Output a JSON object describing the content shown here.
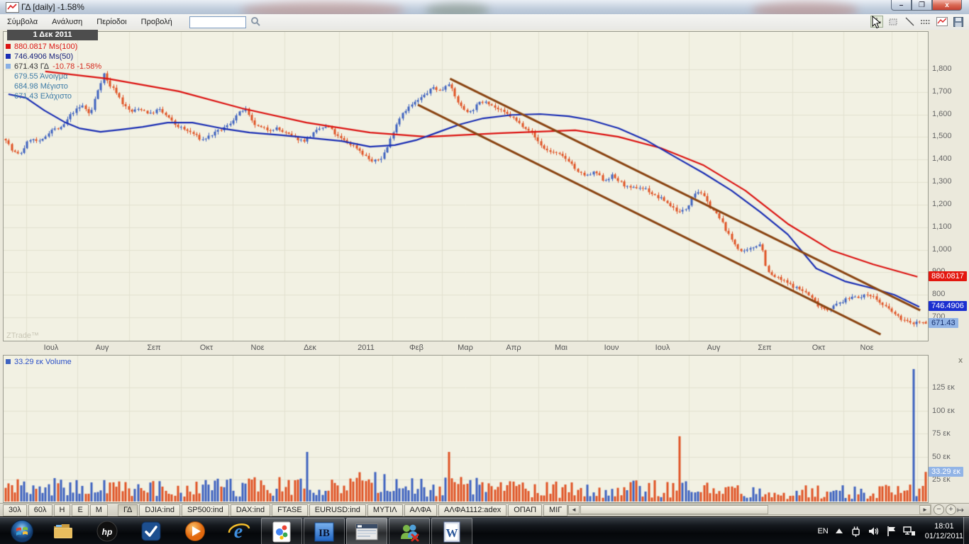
{
  "window": {
    "title": "ΓΔ [daily] -1.58%",
    "min": "–",
    "max": "❐",
    "close": "x"
  },
  "menu": {
    "items": [
      "Σύμβολα",
      "Ανάλυση",
      "Περίοδοι",
      "Προβολή"
    ],
    "search_value": "",
    "tool_icons": [
      "crosshair-tool",
      "region-tool",
      "trendline-tool",
      "measure-tool",
      "chart-type-tool",
      "save-tool"
    ]
  },
  "chart": {
    "tooltip_date": "1 Δεκ 2011",
    "legend": {
      "ma100": "880.0817 Ms(100)",
      "ma50": "746.4906 Ms(50)",
      "symbol": "671.43 ΓΔ",
      "change": "-10.78 -1.58%",
      "open": "679.55 Άνοιγμα",
      "high": "684.98 Μέγιστο",
      "low": "671.43 Ελάχιστο"
    },
    "watermark": "ZTrade™",
    "volume_legend": "33.29 εκ Volume",
    "price_ticks": [
      [
        "1,800",
        1800
      ],
      [
        "1,700",
        1700
      ],
      [
        "1,600",
        1600
      ],
      [
        "1,500",
        1500
      ],
      [
        "1,400",
        1400
      ],
      [
        "1,300",
        1300
      ],
      [
        "1,200",
        1200
      ],
      [
        "1,100",
        1100
      ],
      [
        "1,000",
        1000
      ],
      [
        "900",
        900
      ],
      [
        "800",
        800
      ],
      [
        "700",
        700
      ]
    ],
    "volume_ticks": [
      [
        "125 εκ",
        125
      ],
      [
        "100 εκ",
        100
      ],
      [
        "75 εκ",
        75
      ],
      [
        "50 εκ",
        50
      ],
      [
        "25 εκ",
        25
      ]
    ],
    "price_tags": [
      {
        "text": "880.0817",
        "price": 880.0817,
        "bg": "#e3170f",
        "fg": "#ffffff"
      },
      {
        "text": "746.4906",
        "price": 746.4906,
        "bg": "#1b2fd0",
        "fg": "#ffffff"
      },
      {
        "text": "671.43",
        "price": 671.43,
        "bg": "#92b4e6",
        "fg": "#17306e"
      }
    ],
    "volume_tag": {
      "text": "33.29 εκ",
      "value": 33.29,
      "bg": "#92b4e6",
      "fg": "#ffffff"
    },
    "x_labels": [
      [
        "Ιουλ",
        72
      ],
      [
        "Αυγ",
        144
      ],
      [
        "Σεπ",
        217
      ],
      [
        "Οκτ",
        291
      ],
      [
        "Νοε",
        363
      ],
      [
        "Δεκ",
        437
      ],
      [
        "2011",
        516
      ],
      [
        "Φεβ",
        587
      ],
      [
        "Μαρ",
        656
      ],
      [
        "Απρ",
        724
      ],
      [
        "Μαι",
        791
      ],
      [
        "Ιουν",
        862
      ],
      [
        "Ιουλ",
        934
      ],
      [
        "Αυγ",
        1006
      ],
      [
        "Σεπ",
        1078
      ],
      [
        "Οκτ",
        1154
      ],
      [
        "Νοε",
        1222
      ]
    ]
  },
  "chart_data": {
    "type": "candlestick",
    "title": "ΓΔ daily with Ms(50), Ms(100) moving averages, down-trend channel and volume",
    "y_axis_range": [
      640,
      1850
    ],
    "x_span": "Ιουλ 2010 – 1 Δεκ 2011",
    "last_bar": {
      "date": "1 Δεκ 2011",
      "open": 679.55,
      "high": 684.98,
      "low": 671.43,
      "close": 671.43,
      "change": -10.78,
      "change_pct": -1.58,
      "volume_millions": 33.29
    },
    "ma100_last": 880.0817,
    "ma50_last": 746.4906,
    "candle_count": 300,
    "seed": 7,
    "close_anchors": [
      [
        0,
        1492
      ],
      [
        0.007,
        1438
      ],
      [
        0.015,
        1420
      ],
      [
        0.026,
        1492
      ],
      [
        0.038,
        1476
      ],
      [
        0.049,
        1533
      ],
      [
        0.061,
        1539
      ],
      [
        0.072,
        1608
      ],
      [
        0.084,
        1640
      ],
      [
        0.092,
        1596
      ],
      [
        0.099,
        1696
      ],
      [
        0.107,
        1781
      ],
      [
        0.112,
        1734
      ],
      [
        0.12,
        1703
      ],
      [
        0.128,
        1643
      ],
      [
        0.136,
        1611
      ],
      [
        0.146,
        1627
      ],
      [
        0.157,
        1602
      ],
      [
        0.166,
        1624
      ],
      [
        0.175,
        1592
      ],
      [
        0.184,
        1555
      ],
      [
        0.194,
        1533
      ],
      [
        0.203,
        1517
      ],
      [
        0.213,
        1486
      ],
      [
        0.223,
        1508
      ],
      [
        0.233,
        1530
      ],
      [
        0.242,
        1552
      ],
      [
        0.251,
        1596
      ],
      [
        0.26,
        1627
      ],
      [
        0.267,
        1570
      ],
      [
        0.274,
        1545
      ],
      [
        0.284,
        1533
      ],
      [
        0.294,
        1539
      ],
      [
        0.304,
        1517
      ],
      [
        0.314,
        1498
      ],
      [
        0.323,
        1482
      ],
      [
        0.332,
        1508
      ],
      [
        0.342,
        1539
      ],
      [
        0.351,
        1545
      ],
      [
        0.361,
        1501
      ],
      [
        0.371,
        1476
      ],
      [
        0.381,
        1454
      ],
      [
        0.39,
        1419
      ],
      [
        0.399,
        1388
      ],
      [
        0.408,
        1407
      ],
      [
        0.415,
        1457
      ],
      [
        0.423,
        1545
      ],
      [
        0.431,
        1608
      ],
      [
        0.44,
        1639
      ],
      [
        0.449,
        1665
      ],
      [
        0.458,
        1696
      ],
      [
        0.465,
        1721
      ],
      [
        0.473,
        1702
      ],
      [
        0.481,
        1746
      ],
      [
        0.488,
        1681
      ],
      [
        0.496,
        1627
      ],
      [
        0.505,
        1611
      ],
      [
        0.514,
        1649
      ],
      [
        0.522,
        1662
      ],
      [
        0.531,
        1633
      ],
      [
        0.54,
        1611
      ],
      [
        0.549,
        1592
      ],
      [
        0.559,
        1558
      ],
      [
        0.568,
        1536
      ],
      [
        0.577,
        1489
      ],
      [
        0.586,
        1445
      ],
      [
        0.595,
        1432
      ],
      [
        0.604,
        1416
      ],
      [
        0.613,
        1394
      ],
      [
        0.622,
        1341
      ],
      [
        0.632,
        1328
      ],
      [
        0.641,
        1344
      ],
      [
        0.65,
        1306
      ],
      [
        0.659,
        1328
      ],
      [
        0.669,
        1297
      ],
      [
        0.678,
        1269
      ],
      [
        0.687,
        1278
      ],
      [
        0.696,
        1269
      ],
      [
        0.706,
        1237
      ],
      [
        0.715,
        1222
      ],
      [
        0.724,
        1190
      ],
      [
        0.733,
        1165
      ],
      [
        0.741,
        1187
      ],
      [
        0.747,
        1250
      ],
      [
        0.755,
        1260
      ],
      [
        0.763,
        1206
      ],
      [
        0.77,
        1171
      ],
      [
        0.778,
        1127
      ],
      [
        0.786,
        1064
      ],
      [
        0.794,
        1017
      ],
      [
        0.801,
        986
      ],
      [
        0.809,
        1001
      ],
      [
        0.817,
        1023
      ],
      [
        0.821,
        1030
      ],
      [
        0.826,
        935
      ],
      [
        0.83,
        891
      ],
      [
        0.838,
        876
      ],
      [
        0.846,
        860
      ],
      [
        0.853,
        844
      ],
      [
        0.861,
        828
      ],
      [
        0.869,
        813
      ],
      [
        0.877,
        781
      ],
      [
        0.884,
        750
      ],
      [
        0.892,
        734
      ],
      [
        0.9,
        750
      ],
      [
        0.907,
        766
      ],
      [
        0.915,
        781
      ],
      [
        0.923,
        797
      ],
      [
        0.93,
        787
      ],
      [
        0.938,
        806
      ],
      [
        0.946,
        781
      ],
      [
        0.954,
        750
      ],
      [
        0.961,
        734
      ],
      [
        0.969,
        703
      ],
      [
        0.977,
        687
      ],
      [
        0.984,
        671
      ],
      [
        0.991,
        681
      ],
      [
        1,
        671.43
      ]
    ],
    "ma100_anchors": [
      [
        0.043,
        1791
      ],
      [
        0.111,
        1759
      ],
      [
        0.188,
        1703
      ],
      [
        0.257,
        1627
      ],
      [
        0.327,
        1564
      ],
      [
        0.396,
        1520
      ],
      [
        0.458,
        1501
      ],
      [
        0.535,
        1517
      ],
      [
        0.619,
        1530
      ],
      [
        0.666,
        1501
      ],
      [
        0.712,
        1451
      ],
      [
        0.758,
        1376
      ],
      [
        0.804,
        1262
      ],
      [
        0.85,
        1115
      ],
      [
        0.897,
        998
      ],
      [
        0.943,
        935
      ],
      [
        0.991,
        880.08
      ]
    ],
    "ma50_anchors": [
      [
        0.003,
        1690
      ],
      [
        0.022,
        1674
      ],
      [
        0.042,
        1618
      ],
      [
        0.065,
        1564
      ],
      [
        0.08,
        1539
      ],
      [
        0.103,
        1523
      ],
      [
        0.126,
        1533
      ],
      [
        0.149,
        1545
      ],
      [
        0.176,
        1564
      ],
      [
        0.203,
        1564
      ],
      [
        0.234,
        1539
      ],
      [
        0.265,
        1520
      ],
      [
        0.3,
        1508
      ],
      [
        0.334,
        1495
      ],
      [
        0.365,
        1482
      ],
      [
        0.396,
        1457
      ],
      [
        0.423,
        1464
      ],
      [
        0.446,
        1486
      ],
      [
        0.469,
        1520
      ],
      [
        0.492,
        1554
      ],
      [
        0.519,
        1583
      ],
      [
        0.55,
        1598
      ],
      [
        0.581,
        1602
      ],
      [
        0.612,
        1592
      ],
      [
        0.635,
        1576
      ],
      [
        0.666,
        1539
      ],
      [
        0.696,
        1486
      ],
      [
        0.727,
        1413
      ],
      [
        0.758,
        1341
      ],
      [
        0.789,
        1262
      ],
      [
        0.82,
        1168
      ],
      [
        0.85,
        1068
      ],
      [
        0.881,
        917
      ],
      [
        0.912,
        860
      ],
      [
        0.943,
        828
      ],
      [
        0.966,
        800
      ],
      [
        0.993,
        746.49
      ]
    ],
    "trendlines": [
      {
        "x1": 0.483,
        "p1": 1759,
        "x2": 0.994,
        "p2": 731
      },
      {
        "x1": 0.448,
        "p1": 1643,
        "x2": 0.951,
        "p2": 624
      }
    ],
    "volume_profile_millions": [
      [
        0,
        18
      ],
      [
        0.1,
        15
      ],
      [
        0.2,
        14
      ],
      [
        0.3,
        18
      ],
      [
        0.4,
        20
      ],
      [
        0.46,
        16
      ],
      [
        0.5,
        17
      ],
      [
        0.55,
        15
      ],
      [
        0.6,
        14
      ],
      [
        0.65,
        13
      ],
      [
        0.7,
        15
      ],
      [
        0.75,
        14
      ],
      [
        0.8,
        12
      ],
      [
        0.85,
        11
      ],
      [
        0.9,
        12
      ],
      [
        0.95,
        11
      ],
      [
        1,
        14
      ]
    ],
    "volume_spikes": [
      [
        0.328,
        55,
        "up"
      ],
      [
        0.481,
        55,
        "dn"
      ],
      [
        0.731,
        72,
        "dn"
      ],
      [
        0.988,
        145,
        "up"
      ]
    ],
    "colors": {
      "up": "#3f63c0",
      "down": "#e05426",
      "ma100": "#dc1412",
      "ma50": "#1b2fb4",
      "trend": "#8a4412",
      "grid": "#e3e1d1",
      "plot_bg": "#f2f1e3"
    }
  },
  "tabs": {
    "periods": [
      "30λ",
      "60λ",
      "Η",
      "Ε",
      "Μ"
    ],
    "symbols": [
      "ΓΔ",
      "DJIA:ind",
      "SP500:ind",
      "DAX:ind",
      "FTASE",
      "EURUSD:ind",
      "ΜΥΤΙΛ",
      "ΑΛΦΑ",
      "ΑΛΦΑ1112:adex",
      "ΟΠΑΠ",
      "ΜΙΓ"
    ],
    "active": "ΓΔ"
  },
  "taskbar": {
    "pinned": [
      "start-orb",
      "windows-explorer",
      "hp",
      "check-app",
      "media-player",
      "internet-explorer"
    ],
    "running": [
      "google-app",
      "interactive-brokers",
      "ztrade",
      "messenger",
      "word"
    ],
    "active_app": "ztrade",
    "tray": {
      "lang": "EN",
      "time": "18:01",
      "date": "01/12/2011"
    }
  }
}
